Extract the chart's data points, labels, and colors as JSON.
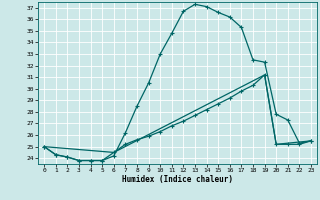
{
  "title": "",
  "xlabel": "Humidex (Indice chaleur)",
  "background_color": "#cce8e8",
  "grid_color": "#ffffff",
  "line_color": "#006666",
  "xlim": [
    -0.5,
    23.5
  ],
  "ylim": [
    23.5,
    37.5
  ],
  "xticks": [
    0,
    1,
    2,
    3,
    4,
    5,
    6,
    7,
    8,
    9,
    10,
    11,
    12,
    13,
    14,
    15,
    16,
    17,
    18,
    19,
    20,
    21,
    22,
    23
  ],
  "yticks": [
    24,
    25,
    26,
    27,
    28,
    29,
    30,
    31,
    32,
    33,
    34,
    35,
    36,
    37
  ],
  "curve1_x": [
    0,
    1,
    2,
    3,
    4,
    5,
    6,
    7,
    8,
    9,
    10,
    11,
    12,
    13,
    14,
    15,
    16,
    17,
    18,
    19,
    20,
    21,
    22,
    23
  ],
  "curve1_y": [
    25.0,
    24.3,
    24.1,
    23.8,
    23.8,
    23.8,
    24.2,
    26.2,
    28.5,
    30.5,
    33.0,
    34.8,
    36.7,
    37.3,
    37.1,
    36.6,
    36.2,
    35.3,
    32.5,
    32.3,
    27.8,
    27.3,
    25.3,
    25.5
  ],
  "curve2_x": [
    0,
    1,
    2,
    3,
    4,
    5,
    6,
    7,
    8,
    9,
    10,
    11,
    12,
    13,
    14,
    15,
    16,
    17,
    18,
    19,
    20,
    21,
    22,
    23
  ],
  "curve2_y": [
    25.0,
    24.3,
    24.1,
    23.8,
    23.8,
    23.8,
    24.5,
    25.2,
    25.6,
    25.9,
    26.3,
    26.8,
    27.2,
    27.7,
    28.2,
    28.7,
    29.2,
    29.8,
    30.3,
    31.2,
    25.2,
    25.2,
    25.2,
    25.5
  ],
  "curve3_x": [
    0,
    6,
    19,
    20,
    23
  ],
  "curve3_y": [
    25.0,
    24.5,
    31.2,
    25.2,
    25.5
  ]
}
